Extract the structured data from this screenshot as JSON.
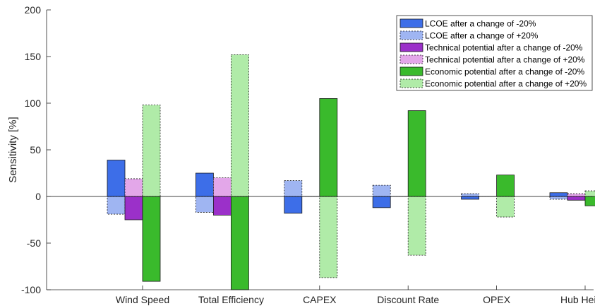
{
  "chart_data": {
    "type": "bar",
    "categories": [
      "Wind Speed",
      "Total Efficiency",
      "CAPEX",
      "Discount Rate",
      "OPEX",
      "Hub Height"
    ],
    "ylabel": "Sensitivity [%]",
    "ylim": [
      -100,
      200
    ],
    "yticks": [
      -100,
      -50,
      0,
      50,
      100,
      150,
      200
    ],
    "grid": false,
    "legend_position": "top-right",
    "series": [
      {
        "name": "LCOE after a change of -20%",
        "values": [
          39,
          25,
          -18,
          -12,
          -3,
          4
        ],
        "color": "#3d6ee8",
        "line": "solid"
      },
      {
        "name": "LCOE after a change of +20%",
        "values": [
          -19,
          -17,
          17,
          12,
          3,
          -3
        ],
        "color": "#9fb5f2",
        "line": "dashed"
      },
      {
        "name": "Technical potential after a change of -20%",
        "values": [
          -25,
          -20,
          0,
          0,
          0,
          -4
        ],
        "color": "#9b30c9",
        "line": "solid"
      },
      {
        "name": "Technical potential after a change of +20%",
        "values": [
          19,
          20,
          0,
          0,
          0,
          3
        ],
        "color": "#e3a7e9",
        "line": "dashed"
      },
      {
        "name": "Economic potential after a change of -20%",
        "values": [
          -91,
          -100,
          105,
          92,
          23,
          -10
        ],
        "color": "#3aba2c",
        "line": "solid"
      },
      {
        "name": "Economic potential after a change of +20%",
        "values": [
          98,
          152,
          -87,
          -63,
          -22,
          6
        ],
        "color": "#b0eba8",
        "line": "dashed"
      }
    ]
  }
}
